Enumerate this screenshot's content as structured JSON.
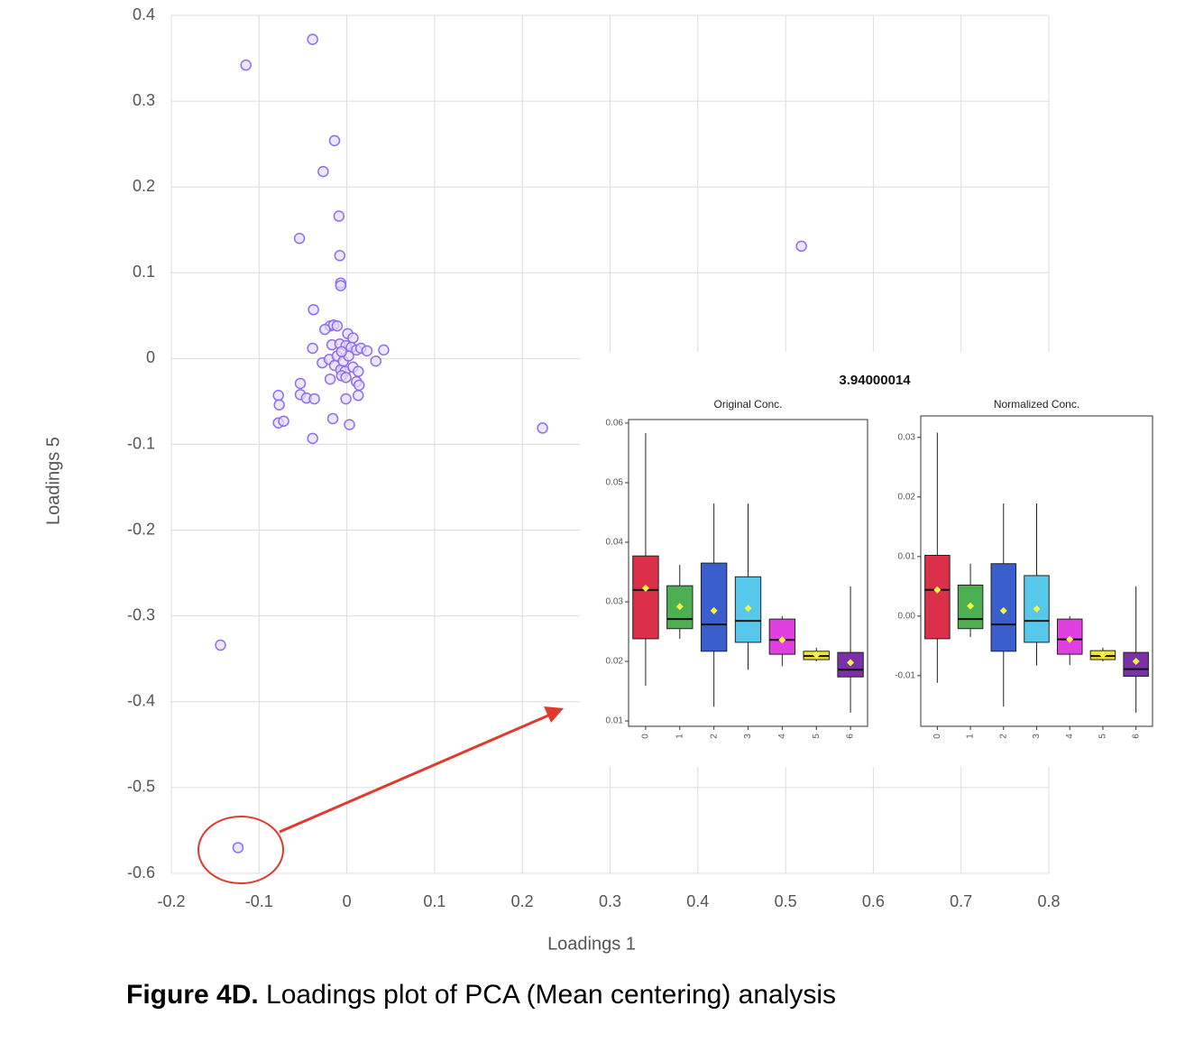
{
  "chart_data": [
    {
      "type": "scatter",
      "x_label": "Loadings 1",
      "y_label": "Loadings 5",
      "color": "#8f6df2",
      "fill": "#e4dcfd",
      "grid": true,
      "xlim": [
        -0.2,
        0.8
      ],
      "xticks": [
        -0.2,
        -0.1,
        0,
        0.1,
        0.2,
        0.3,
        0.4,
        0.5,
        0.6,
        0.7,
        0.8
      ],
      "ylim": [
        -0.6,
        0.4
      ],
      "yticks": [
        0.4,
        0.3,
        0.2,
        0.1,
        0,
        -0.1,
        -0.2,
        -0.3,
        -0.4,
        -0.5,
        -0.6
      ],
      "x": [
        -0.115,
        -0.039,
        -0.014,
        -0.027,
        -0.009,
        -0.054,
        -0.008,
        -0.007,
        -0.007,
        0.518,
        -0.038,
        0.223,
        -0.144,
        -0.124,
        -0.019,
        -0.015,
        -0.011,
        -0.025,
        0.001,
        0.007,
        -0.039,
        -0.017,
        -0.008,
        -0.001,
        0.005,
        0.011,
        0.016,
        0.023,
        0.042,
        -0.028,
        -0.02,
        -0.014,
        -0.007,
        -0.002,
        0.007,
        0.013,
        0.033,
        -0.019,
        -0.006,
        -0.001,
        0.011,
        0.014,
        -0.053,
        -0.078,
        -0.053,
        -0.046,
        -0.037,
        -0.077,
        0.013,
        -0.001,
        -0.078,
        -0.072,
        -0.016,
        0.003,
        -0.039,
        -0.011,
        -0.004,
        0.002,
        -0.006
      ],
      "y": [
        0.342,
        0.372,
        0.254,
        0.218,
        0.166,
        0.14,
        0.12,
        0.088,
        0.085,
        0.131,
        0.057,
        -0.081,
        -0.334,
        -0.57,
        0.038,
        0.039,
        0.038,
        0.034,
        0.029,
        0.024,
        0.012,
        0.016,
        0.017,
        0.015,
        0.013,
        0.01,
        0.012,
        0.009,
        0.01,
        -0.005,
        -0.001,
        -0.008,
        -0.013,
        -0.015,
        -0.01,
        -0.015,
        -0.003,
        -0.024,
        -0.02,
        -0.022,
        -0.027,
        -0.031,
        -0.029,
        -0.043,
        -0.042,
        -0.046,
        -0.047,
        -0.054,
        -0.043,
        -0.047,
        -0.075,
        -0.073,
        -0.07,
        -0.077,
        -0.093,
        0.003,
        -0.003,
        0.003,
        0.008
      ]
    },
    {
      "type": "box",
      "title": "Original Conc.",
      "categories": [
        "0",
        "1",
        "2",
        "3",
        "4",
        "5",
        "6"
      ],
      "ylim": [
        0.0091,
        0.0606
      ],
      "yticks": [
        0.01,
        0.02,
        0.03,
        0.04,
        0.05,
        0.06
      ],
      "colors": [
        "#dc2f4a",
        "#4caf50",
        "#3a5fcd",
        "#56c8ec",
        "#e040e0",
        "#f2e33a",
        "#7b2fa8"
      ],
      "low": [
        0.0159,
        0.0238,
        0.0124,
        0.0186,
        0.0192,
        0.02,
        0.0114
      ],
      "q1": [
        0.0238,
        0.0255,
        0.0217,
        0.0232,
        0.0212,
        0.0203,
        0.0174
      ],
      "median": [
        0.032,
        0.0271,
        0.0262,
        0.0268,
        0.0236,
        0.0209,
        0.0186
      ],
      "q3": [
        0.0377,
        0.0327,
        0.0365,
        0.0342,
        0.0271,
        0.0217,
        0.0215
      ],
      "high": [
        0.0583,
        0.0362,
        0.0465,
        0.0465,
        0.0276,
        0.0223,
        0.0326
      ],
      "mean": [
        0.0323,
        0.0292,
        0.0285,
        0.0289,
        0.0236,
        0.0211,
        0.0198
      ]
    },
    {
      "type": "box",
      "title": "Normalized Conc.",
      "categories": [
        "0",
        "1",
        "2",
        "3",
        "4",
        "5",
        "6"
      ],
      "ylim": [
        -0.0185,
        0.0336
      ],
      "yticks": [
        0.03,
        0.02,
        0.01,
        {
          "value": 0,
          "label": "0.00"
        },
        -0.01
      ],
      "colors": [
        "#dc2f4a",
        "#4caf50",
        "#3a5fcd",
        "#56c8ec",
        "#e040e0",
        "#f2e33a",
        "#7b2fa8"
      ],
      "low": [
        -0.0112,
        -0.0035,
        -0.0152,
        -0.0083,
        -0.0082,
        -0.0076,
        -0.0162
      ],
      "q1": [
        -0.0038,
        -0.0021,
        -0.0059,
        -0.0044,
        -0.0064,
        -0.0073,
        -0.0101
      ],
      "median": [
        0.0044,
        -0.0005,
        -0.0014,
        -0.0008,
        -0.0039,
        -0.0067,
        -0.0089
      ],
      "q3": [
        0.0102,
        0.0052,
        0.0088,
        0.0068,
        -0.0005,
        -0.0058,
        -0.0061
      ],
      "high": [
        0.0308,
        0.0088,
        0.0189,
        0.0189,
        0,
        -0.0053,
        0.005
      ],
      "mean": [
        0.0044,
        0.0017,
        0.0009,
        0.0012,
        -0.0039,
        -0.0065,
        -0.0076
      ]
    }
  ],
  "inset_title": "3.94000014",
  "caption": {
    "label": "Figure 4D.",
    "text": " Loadings plot of PCA (Mean centering) analysis"
  }
}
